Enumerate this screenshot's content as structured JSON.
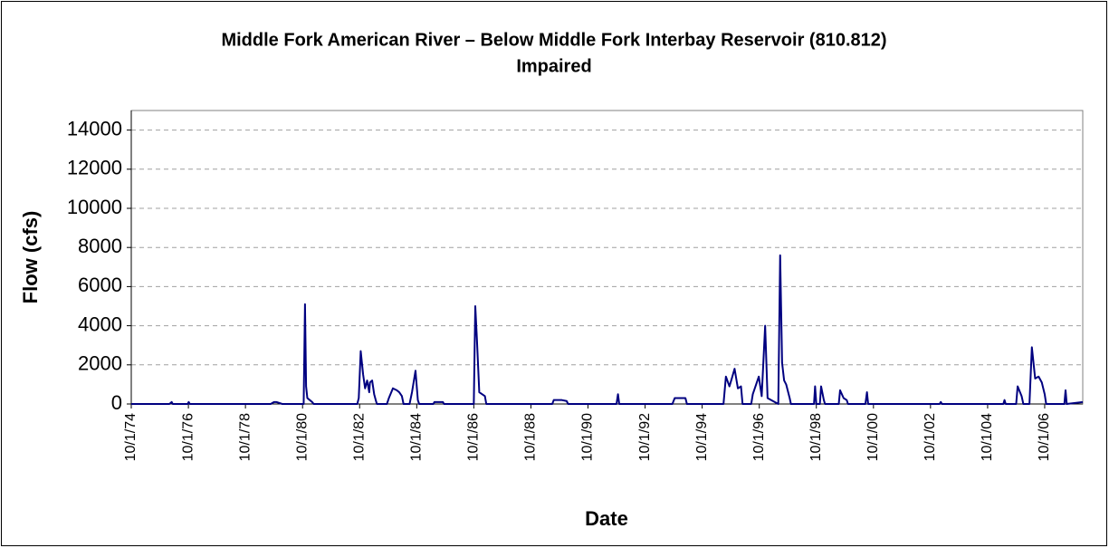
{
  "chart_data": {
    "type": "line",
    "title": "Middle Fork American River – Below Middle Fork Interbay Reservoir (810.812)",
    "subtitle": "Impaired",
    "x_label": "Date",
    "y_label": "Flow (cfs)",
    "color": "#000080",
    "grid": true,
    "ylim": [
      0,
      15000
    ],
    "yticks": [
      0,
      2000,
      4000,
      6000,
      8000,
      10000,
      12000,
      14000
    ],
    "xlim": [
      "1974-10-01",
      "2008-01-31"
    ],
    "xticks": [
      {
        "value": "1974-10-01",
        "label": "10/1/74"
      },
      {
        "value": "1976-10-01",
        "label": "10/1/76"
      },
      {
        "value": "1978-10-01",
        "label": "10/1/78"
      },
      {
        "value": "1980-10-01",
        "label": "10/1/80"
      },
      {
        "value": "1982-10-01",
        "label": "10/1/82"
      },
      {
        "value": "1984-10-01",
        "label": "10/1/84"
      },
      {
        "value": "1986-10-01",
        "label": "10/1/86"
      },
      {
        "value": "1988-10-01",
        "label": "10/1/88"
      },
      {
        "value": "1990-10-01",
        "label": "10/1/90"
      },
      {
        "value": "1992-10-01",
        "label": "10/1/92"
      },
      {
        "value": "1994-10-01",
        "label": "10/1/94"
      },
      {
        "value": "1996-10-01",
        "label": "10/1/96"
      },
      {
        "value": "1998-10-01",
        "label": "10/1/98"
      },
      {
        "value": "2000-10-01",
        "label": "10/1/00"
      },
      {
        "value": "2002-10-01",
        "label": "10/1/02"
      },
      {
        "value": "2004-10-01",
        "label": "10/1/04"
      },
      {
        "value": "2006-10-01",
        "label": "10/1/06"
      }
    ],
    "x": [
      "1974-10-01",
      "1976-02-01",
      "1976-03-01",
      "1976-03-15",
      "1976-09-20",
      "1976-10-05",
      "1976-10-20",
      "1979-08-20",
      "1979-10-01",
      "1979-11-01",
      "1980-01-15",
      "1980-10-15",
      "1980-11-01",
      "1980-11-15",
      "1980-12-01",
      "1981-01-01",
      "1981-02-01",
      "1981-02-20",
      "1982-09-01",
      "1982-09-20",
      "1982-10-15",
      "1982-11-15",
      "1982-12-10",
      "1983-01-05",
      "1983-02-01",
      "1983-02-10",
      "1983-03-10",
      "1983-04-05",
      "1983-04-25",
      "1983-05-10",
      "1983-09-15",
      "1983-10-10",
      "1983-12-01",
      "1984-01-20",
      "1984-02-20",
      "1984-03-25",
      "1984-04-15",
      "1984-07-01",
      "1984-08-01",
      "1984-09-15",
      "1984-10-15",
      "1984-11-01",
      "1985-05-01",
      "1985-05-15",
      "1985-09-01",
      "1985-09-15",
      "1986-10-01",
      "1986-10-20",
      "1986-11-10",
      "1986-12-10",
      "1987-02-20",
      "1987-03-10",
      "1989-07-01",
      "1989-07-20",
      "1989-11-01",
      "1990-01-01",
      "1990-01-20",
      "1991-10-01",
      "1991-10-20",
      "1991-11-05",
      "1993-09-15",
      "1993-10-15",
      "1994-03-01",
      "1994-03-20",
      "1995-07-01",
      "1995-08-01",
      "1995-09-15",
      "1995-10-15",
      "1995-11-20",
      "1996-01-01",
      "1996-02-10",
      "1996-03-01",
      "1996-06-20",
      "1996-07-10",
      "1996-09-25",
      "1996-11-01",
      "1996-12-15",
      "1997-01-15",
      "1997-06-01",
      "1997-06-25",
      "1997-07-20",
      "1997-08-15",
      "1997-09-10",
      "1997-10-25",
      "1997-11-10",
      "1998-09-01",
      "1998-09-15",
      "1998-10-01",
      "1998-11-15",
      "1998-12-01",
      "1999-01-05",
      "1999-01-20",
      "1999-07-15",
      "1999-08-01",
      "1999-09-15",
      "1999-10-25",
      "1999-11-10",
      "2000-06-20",
      "2000-07-10",
      "2000-07-25",
      "2003-01-25",
      "2003-02-10",
      "2003-02-25",
      "2005-04-20",
      "2005-05-05",
      "2005-05-20",
      "2005-10-01",
      "2005-10-20",
      "2005-12-10",
      "2006-01-01",
      "2006-03-20",
      "2006-04-20",
      "2006-06-01",
      "2006-07-15",
      "2006-08-25",
      "2006-10-01",
      "2006-10-20",
      "2007-06-10",
      "2007-06-25",
      "2007-07-10",
      "2008-01-31"
    ],
    "values": [
      0,
      0,
      100,
      0,
      0,
      100,
      0,
      0,
      100,
      100,
      0,
      0,
      5100,
      900,
      300,
      200,
      100,
      0,
      0,
      300,
      2700,
      1500,
      800,
      1200,
      600,
      1100,
      1200,
      500,
      200,
      0,
      0,
      300,
      800,
      700,
      600,
      400,
      0,
      0,
      600,
      1700,
      200,
      0,
      0,
      100,
      100,
      0,
      0,
      5000,
      3300,
      600,
      400,
      0,
      0,
      200,
      200,
      150,
      0,
      0,
      500,
      0,
      0,
      300,
      300,
      0,
      0,
      1400,
      900,
      1300,
      1800,
      800,
      900,
      0,
      0,
      500,
      1400,
      400,
      4000,
      300,
      0,
      7600,
      2100,
      1200,
      1000,
      300,
      0,
      0,
      900,
      0,
      0,
      900,
      200,
      0,
      0,
      700,
      300,
      200,
      0,
      0,
      600,
      0,
      0,
      100,
      0,
      0,
      200,
      0,
      0,
      900,
      400,
      0,
      0,
      2900,
      1300,
      1400,
      1100,
      500,
      0,
      0,
      700,
      0,
      100
    ]
  }
}
